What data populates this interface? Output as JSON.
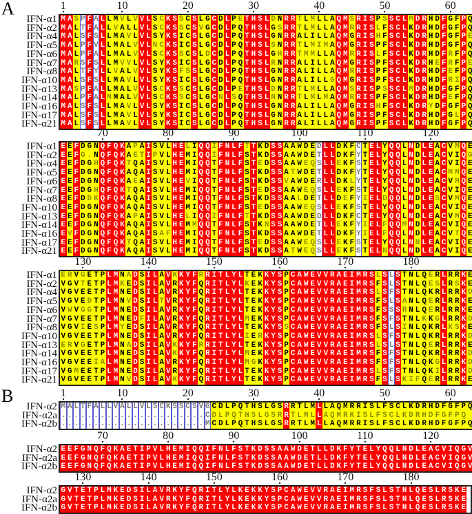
{
  "panel_a": {
    "letter": "A",
    "block_starts": [
      1,
      64,
      127
    ],
    "ticks": [
      [
        "1",
        "10",
        "20",
        "30",
        "40",
        "50",
        "60"
      ],
      [
        "70",
        "80",
        "90",
        "100",
        "110",
        "120"
      ],
      [
        "130",
        "140",
        "150",
        "160",
        "170",
        "180"
      ]
    ],
    "rows": [
      {
        "name": "IFN-α1",
        "blocks": [
          "MASPFALLMVLVVLSCKSSCSLGCDLPETHSLDNRRTLMLLAQMSRISPSSCLMDRHDFGFPQ",
          "EEFDGNQFQKAPAISVLHELIQQIFNLFTTKDSSAAWDEDLLDKFCTELYQQLNDLEACVMQE",
          "ERVGETPLMNADSILAVKKYFRRITLYLTEKKYSPCAWEVVRAEIMRSLSLSTNLQERLRRKE"
        ]
      },
      {
        "name": "IFN-α2",
        "blocks": [
          "MALTFALLVALLVLSCKSSCSVGCDLPQTHSLGSRRTLMLLAQMRRISLFSCLKDRHDFGFPQ",
          "EEFG.NQFQKAETIPVLHEMIQQIFNLFSTKDSSAAWDETLLDKFYTELYQQLNDLEACVIQG",
          "VGVTETPLMKEDSILAVRKYFQRITLYLKEKKYSPCAWEVVRAEIMRSFSLSTNLQESLRSKE"
        ]
      },
      {
        "name": "IFN-α4",
        "blocks": [
          "MALSFSLLMAVLVLSYKSICSLGCDLPQTHSLGNRRALILLAQMGRISHFSCLKDRHDFGFPE",
          "EEFDGHQFQKTQAISVLHEMIQQTFNLFSTEDSSAAWEQSLLEKFSTELYQQLNDLEACVIQE",
          "VGVEETPLMNEDSILAVRKYFQRITLYLTEKKYSPCAWEVVRAEIMRSLSFSTNLQKRLRRKD"
        ]
      },
      {
        "name": "IFN-α5",
        "blocks": [
          "MALPFVLLMALVVLNCKSICSLGCDLPQTHSLSNRRTLMIMAQMGRISPFSCLKDRHDFGFPQ",
          "EEFDGNQFQKAQAISVLHEMIQQTFNLFSTKDSSATWDETLLDKFYTELYQQLNDLEACMMQE",
          "VGVEDTPLMNVDSILTVRKYFQRITLYLTEKKYSPCAWEVVRAEIMRSFSLSANLQERLRRKE"
        ]
      },
      {
        "name": "IFN-α6",
        "blocks": [
          "MALPFALLMALVVLSCKSSCSLDCDLPQTHSLGHRRTMMLLAQMRRISLFSCLKDRHDFRFPQ",
          "EEFDGNQFQKAEAISVLHEVIQQTFNLFSTKDSSVAWDERLLDKLYTELYQQLNDLEACVMQE",
          "VWVGGTPLMNEDSILAVRKYFQRITLYLTEKKYSPCAWEVVRAEIMRSFSSSRNLQERLRRKE"
        ]
      },
      {
        "name": "IFN-α7",
        "blocks": [
          "MARSFSLLMVVLVLSYKSICSLGCDLPQTHSLRNRRALILLAQMGRISPFSCLKDRHEFRFPE",
          "EEFDGHQFQKTQAISVLHEMIQQTFNLFSTEDSSAAWEQSLLEKFSTELYQQLNDLEACVIQE",
          "VGVEETPLMNEDFILAVRKYFQRITLYLMEKKYSPCAWEVVRAEIMRSFSFSTNLKKGLRRKD"
        ]
      },
      {
        "name": "IFN-α8",
        "blocks": [
          "MALTFYLLVALVVLSYKSFSSLGCDLPQTHSLGNRRALILLAQMRRISPFSCLKDRHDFEFPQ",
          "EEFDDKQFQKAQAISVLHEMIQQTFNLFSTKDSSAALDETLLDEFYIELDQQLNDLESCVMQE",
          "VGVIESPLMYEDSILAVRKYFQRITLYLTEKKYSSCAWEVVRAEIMRSFSLSINLQKRLKSKE"
        ]
      },
      {
        "name": "IFN-α10",
        "blocks": [
          "MALSFSLLMAVLVLSYKSICSLGCDLPQTHSLGNRRALILLGQMGRISPFSCLKDRHDFRIPQ",
          "EEFDGNQFQKAQAISVLHEMIQQTFNLFSTEDSSAAWEQSLLEKFSTELYQQLNDLEACVIQE",
          "VGVEETPLMNEDSILAVRKYFQRITLYLIERKYSPCAWEVVRAEIMRSLSFSTNLQKRLRRKD"
        ]
      },
      {
        "name": "IFN-α13",
        "blocks": [
          "MASPFALLMALVVLSCKSSCSLGCDLPETHSLDNRRTLMLLAQMSRISPSSCLMDRHDFGFPQ",
          "EEFDGNQFQKAPAISVLHELIQQIFNLFTTKDSSAAWDEDLLDKFCTELYQQLNDLEACVMQE",
          "ERVGETPLMNADSILAVKKYFRRITLYLTEKKYSPCAWEVVRAEIMRSLSLSTNLQERLRRKE"
        ]
      },
      {
        "name": "IFN-α14",
        "blocks": [
          "MALPFALMMALVVLSCKSSCSLGCNLSQTHSLNNRRTLMLMAQMRRISPFSCLKDRHDFEFPQ",
          "EEFDGNQFQKAQAISVLHEMMQQTFNLFSTKNSSAAWDETLLEKFYIELFQQMNDLEACVIQE",
          "VGVEETPLMNEDSILAVKKYFQRITLYLMEKKYSPCAWEVVRAEIMRSFSFSTNLQKRLRRKD"
        ]
      },
      {
        "name": "IFN-α16",
        "blocks": [
          "MALSFSLLMAVLVLSYKSICSLGCDLPQTHSLGNRRALILLAQMGRISHFSCLKDRYDFGFPQ",
          "EVFDGNQFQKAQAISAFHEMIQQTFNLFSTKDSSAAWDETLLDKFYIELFQQLNDLEACVTQE",
          "VGVEEIALMNEDSILAVRKYFQRITLYLMGKKYSPCAWEVVRAEIMRSFSFSTNLQKGLRRKD"
        ]
      },
      {
        "name": "IFN-α17",
        "blocks": [
          "MALSFSLLMAVLVLSYKSICSLGCDLPQTHSLGNRRALILLAQMGRISPFSCLKDRHDFGLPQ",
          "EEFDGNQFQKTQAISVLHEMIQQTFNLFSTEDSSAAWEQSLLEKFSTELYQQLNNLEACVIQE",
          "VGMEETPLMNEDSILAVRKYFQRITLYLTEKKYSPCAWEVVRAEIMRSLSFSTNLQKILRRKD"
        ]
      },
      {
        "name": "IFN-α21",
        "blocks": [
          "MALSFSLLMAVLVLSYKSICSLGCDLPQTHSLGNRRALILLAQMGRISPFSCLKDRHDFGFPQ",
          "EEFDGNQFQKAQAISVLHEMIQQTFNLFSTKDSSATWEQSLLEKFSTELNQQLNDLEACVIQE",
          "VGVEETPLMNVDSILAVKKYFQRITLYLTEKKYSPCAWEVVRAEIMRSFSLSKIFQERLRRKE"
        ]
      }
    ]
  },
  "panel_b": {
    "letter": "B",
    "block_starts": [
      1,
      64,
      127
    ],
    "ticks": [
      [
        "1",
        "10",
        "20",
        "30",
        "40",
        "50",
        "60"
      ],
      [
        "70",
        "80",
        "90",
        "100",
        "110",
        "120"
      ],
      [
        "130",
        "140",
        "150",
        "160",
        "170",
        "180"
      ]
    ],
    "rows": [
      {
        "name": "IFN-α2",
        "blocks": [
          "MALTFALLVALLVLSCKSSCSVGCDLPQTHSLGSRRTLMLLAQMRRISLFSCLKDRHDFGFPQ",
          "EEFGNQFQKAETIPVLHEMIQQIFNLFSTKDSSAAWDETLLDKFYTELYQQLNDLEACVIQGV",
          "GVTETPLMKEDSILAVRKYFQRITLYLKEKKYSPCAWEVVRAEIMRSFSLSTNLQESLRSKE"
        ]
      },
      {
        "name": "IFN-α2a",
        "blocks": [
          "......................CDLPQTHSLGSRRTLMLLAQMRKISLFSCLKDRHDFGFPQ",
          "EEFGNQFQKAETIPVLHEMIQQIFNLFSTKDSSAAWDETLLDKFYTELYQQLNDLEACVIQGV",
          "GVTETPLMKEDSILAVRKYFQRITLYLKEKKYSPCAWEVVRAEIMRSFSLSTNLQESLRSKE"
        ]
      },
      {
        "name": "IFN-α2b",
        "blocks": [
          "......................MCDLPQTHSLGSRRTLMLLAQMRRISLFSCLKDRHDFGFPQ",
          "EEFGNQFQKAETIPVLHEMIQQIFNLFSTKDSSAAWDETLLDKFYTELYQQLNDLEACVIQGV",
          "GVTETPLMKEDSILAVRKYFQRITLYLKEKKYSPCAWEVVRAEIMRSFSLSTNLQESLRSKE"
        ]
      }
    ]
  },
  "colors": {
    "identical": "#ff0000",
    "similar": "#ffff00",
    "frame": "#5a5ad0"
  }
}
